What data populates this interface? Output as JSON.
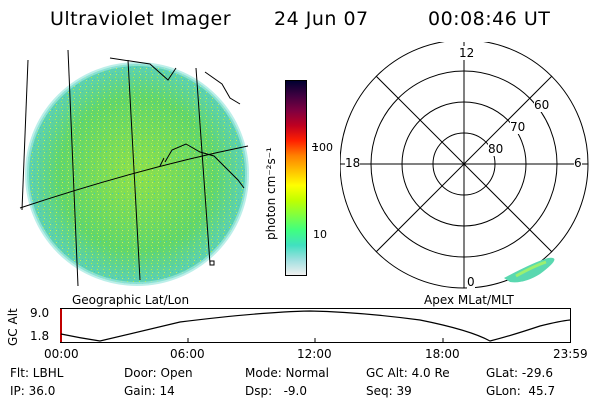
{
  "header": {
    "instrument": "Ultraviolet Imager",
    "date": "24 Jun 07",
    "time": "00:08:46 UT"
  },
  "left_panel": {
    "caption": "Geographic Lat/Lon"
  },
  "right_panel": {
    "caption": "Apex MLat/MLT",
    "mlt_labels": {
      "top": "12",
      "left": "18",
      "right": "6",
      "bottom": "0"
    },
    "lat_labels": [
      "60",
      "70",
      "80"
    ]
  },
  "colorbar": {
    "unit": "photon cm⁻²s⁻¹",
    "ticks": [
      "100",
      "10"
    ],
    "colors": [
      "#000030",
      "#400040",
      "#800040",
      "#c00020",
      "#ff2000",
      "#ff8000",
      "#ffc000",
      "#ffff00",
      "#c0ff00",
      "#80ff40",
      "#40ff80",
      "#40e0c0",
      "#a0e0e0",
      "#f0f0f0"
    ]
  },
  "altitude_plot": {
    "ylabel": "GC Alt",
    "yticks": [
      "9.0",
      "1.8"
    ],
    "xticks": [
      "00:00",
      "06:00",
      "12:00",
      "18:00",
      "23:59"
    ]
  },
  "info": {
    "row1": [
      "Flt: LBHL",
      "Door: Open",
      "Mode: Normal",
      "GC Alt: 4.0 Re",
      "GLat: -29.6"
    ],
    "row2": [
      "IP: 36.0",
      "Gain: 14",
      "Dsp:   -9.0",
      "Seq: 39",
      "GLon:  45.7"
    ]
  }
}
